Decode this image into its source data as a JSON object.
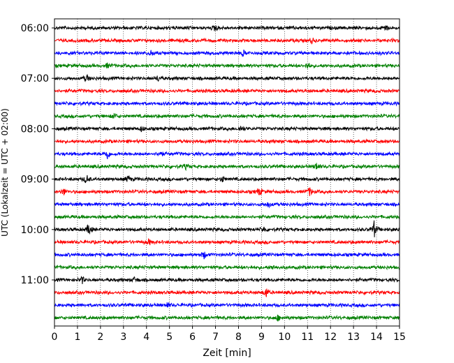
{
  "chart_data": {
    "type": "line",
    "title": "",
    "xlabel": "Zeit  [min]",
    "ylabel": "UTC (Lokalzeit = UTC + 02:00)",
    "xlim": [
      0,
      15
    ],
    "x_ticks": [
      "0",
      "1",
      "2",
      "3",
      "4",
      "5",
      "6",
      "7",
      "8",
      "9",
      "10",
      "11",
      "12",
      "13",
      "14",
      "15"
    ],
    "y_ticks": [
      {
        "label": "06:00",
        "row": 0
      },
      {
        "label": "07:00",
        "row": 4
      },
      {
        "label": "08:00",
        "row": 8
      },
      {
        "label": "09:00",
        "row": 12
      },
      {
        "label": "10:00",
        "row": 16
      },
      {
        "label": "11:00",
        "row": 20
      }
    ],
    "grid": "vertical dotted at each minute",
    "trace_interval_minutes": 15,
    "trace_colors": [
      "#000000",
      "#ff0000",
      "#0000ff",
      "#008000"
    ],
    "traces": [
      {
        "start": "06:00",
        "color": "#000000",
        "events": [
          {
            "x": 7.0,
            "amp": 5
          },
          {
            "x": 14.4,
            "amp": 5
          }
        ]
      },
      {
        "start": "06:15",
        "color": "#ff0000",
        "events": [
          {
            "x": 11.2,
            "amp": 4
          }
        ]
      },
      {
        "start": "06:30",
        "color": "#0000ff",
        "events": [
          {
            "x": 4.2,
            "amp": 4
          },
          {
            "x": 8.2,
            "amp": 4
          }
        ]
      },
      {
        "start": "06:45",
        "color": "#008000",
        "events": [
          {
            "x": 2.3,
            "amp": 3
          },
          {
            "x": 11.0,
            "amp": 5
          }
        ]
      },
      {
        "start": "07:00",
        "color": "#000000",
        "events": [
          {
            "x": 1.4,
            "amp": 5
          },
          {
            "x": 4.5,
            "amp": 4
          }
        ]
      },
      {
        "start": "07:15",
        "color": "#ff0000",
        "events": []
      },
      {
        "start": "07:30",
        "color": "#0000ff",
        "events": []
      },
      {
        "start": "07:45",
        "color": "#008000",
        "events": [
          {
            "x": 2.6,
            "amp": 4
          }
        ]
      },
      {
        "start": "08:00",
        "color": "#000000",
        "events": [
          {
            "x": 3.8,
            "amp": 4
          },
          {
            "x": 8.1,
            "amp": 4
          }
        ]
      },
      {
        "start": "08:15",
        "color": "#ff0000",
        "events": []
      },
      {
        "start": "08:30",
        "color": "#0000ff",
        "events": [
          {
            "x": 2.3,
            "amp": 8
          },
          {
            "x": 4.6,
            "amp": 5
          }
        ]
      },
      {
        "start": "08:45",
        "color": "#008000",
        "events": [
          {
            "x": 11.4,
            "amp": 6
          },
          {
            "x": 5.7,
            "amp": 3
          }
        ]
      },
      {
        "start": "09:00",
        "color": "#000000",
        "events": [
          {
            "x": 1.4,
            "amp": 7
          },
          {
            "x": 3.2,
            "amp": 5
          },
          {
            "x": 7.3,
            "amp": 4
          }
        ]
      },
      {
        "start": "09:15",
        "color": "#ff0000",
        "events": [
          {
            "x": 0.4,
            "amp": 5
          },
          {
            "x": 8.9,
            "amp": 6
          },
          {
            "x": 11.1,
            "amp": 6
          }
        ]
      },
      {
        "start": "09:30",
        "color": "#0000ff",
        "events": [
          {
            "x": 9.3,
            "amp": 4
          }
        ]
      },
      {
        "start": "09:45",
        "color": "#008000",
        "events": []
      },
      {
        "start": "10:00",
        "color": "#000000",
        "events": [
          {
            "x": 1.5,
            "amp": 9
          },
          {
            "x": 13.9,
            "amp": 12
          },
          {
            "x": 9.1,
            "amp": 4
          }
        ]
      },
      {
        "start": "10:15",
        "color": "#ff0000",
        "events": [
          {
            "x": 4.1,
            "amp": 4
          }
        ]
      },
      {
        "start": "10:30",
        "color": "#0000ff",
        "events": [
          {
            "x": 6.5,
            "amp": 5
          }
        ]
      },
      {
        "start": "10:45",
        "color": "#008000",
        "events": [
          {
            "x": 9.5,
            "amp": 3
          }
        ]
      },
      {
        "start": "11:00",
        "color": "#000000",
        "events": [
          {
            "x": 1.2,
            "amp": 5
          },
          {
            "x": 3.5,
            "amp": 4
          }
        ]
      },
      {
        "start": "11:15",
        "color": "#ff0000",
        "events": [
          {
            "x": 9.2,
            "amp": 8
          }
        ]
      },
      {
        "start": "11:30",
        "color": "#0000ff",
        "events": [
          {
            "x": 4.9,
            "amp": 4
          }
        ]
      },
      {
        "start": "11:45",
        "color": "#008000",
        "events": [
          {
            "x": 9.7,
            "amp": 4
          }
        ]
      }
    ]
  }
}
